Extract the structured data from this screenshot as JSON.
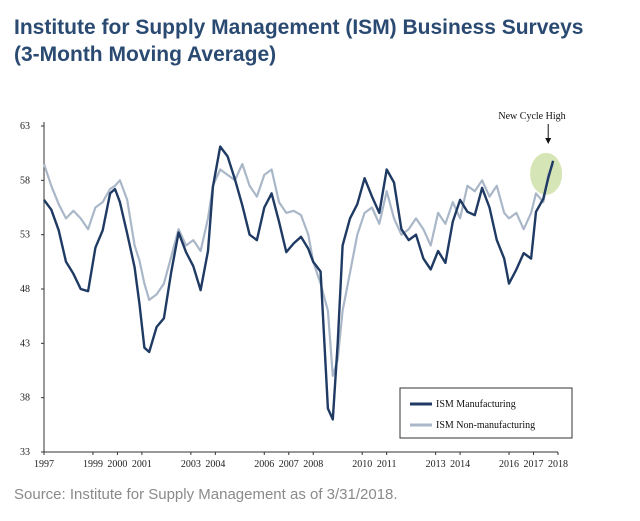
{
  "title_line1": "Institute for Supply Management (ISM) Business Surveys",
  "title_line2": "(3-Month Moving Average)",
  "source": "Source: Institute for Supply Management as of 3/31/2018.",
  "colors": {
    "manufacturing": "#1f3a63",
    "non_manufacturing": "#a9b7c8",
    "highlight": "#cfe0a8",
    "title": "#2a4a72"
  },
  "chart_data": {
    "type": "line",
    "title": "",
    "xlabel": "",
    "ylabel": "",
    "ylim": [
      33,
      63
    ],
    "xlim": [
      1997,
      2018
    ],
    "yticks": [
      33,
      38,
      43,
      48,
      53,
      58,
      63
    ],
    "xticks": [
      1997,
      1999,
      2000,
      2001,
      2003,
      2004,
      2006,
      2007,
      2008,
      2010,
      2011,
      2013,
      2014,
      2016,
      2017,
      2018
    ],
    "grid": false,
    "legend": "bottom-right",
    "annotation": {
      "text": "New Cycle High",
      "x": 2017.6,
      "y": 59.8
    },
    "series": [
      {
        "name": "ISM Manufacturing",
        "x": [
          1997.0,
          1997.3,
          1997.6,
          1997.9,
          1998.2,
          1998.5,
          1998.8,
          1999.1,
          1999.4,
          1999.7,
          1999.9,
          2000.1,
          2000.4,
          2000.7,
          2000.9,
          2001.1,
          2001.3,
          2001.6,
          2001.9,
          2002.2,
          2002.5,
          2002.8,
          2003.1,
          2003.4,
          2003.7,
          2003.9,
          2004.2,
          2004.5,
          2004.8,
          2005.1,
          2005.4,
          2005.7,
          2006.0,
          2006.3,
          2006.6,
          2006.9,
          2007.2,
          2007.5,
          2007.8,
          2008.0,
          2008.3,
          2008.6,
          2008.8,
          2009.0,
          2009.2,
          2009.5,
          2009.8,
          2010.1,
          2010.4,
          2010.7,
          2011.0,
          2011.3,
          2011.6,
          2011.9,
          2012.2,
          2012.5,
          2012.8,
          2013.1,
          2013.4,
          2013.7,
          2014.0,
          2014.3,
          2014.6,
          2014.9,
          2015.2,
          2015.5,
          2015.8,
          2016.0,
          2016.3,
          2016.6,
          2016.9,
          2017.1,
          2017.4,
          2017.6,
          2017.8
        ],
        "values": [
          56.2,
          55.3,
          53.4,
          50.5,
          49.4,
          48.0,
          47.8,
          51.8,
          53.4,
          56.8,
          57.2,
          56.0,
          53.1,
          50.0,
          46.6,
          42.6,
          42.2,
          44.5,
          45.3,
          49.6,
          53.2,
          51.4,
          50.1,
          47.9,
          51.5,
          57.4,
          61.1,
          60.2,
          58.1,
          55.7,
          53.0,
          52.5,
          55.5,
          56.8,
          54.2,
          51.4,
          52.2,
          52.8,
          51.7,
          50.5,
          49.6,
          37.0,
          36.0,
          43.0,
          52.0,
          54.5,
          55.8,
          58.2,
          56.5,
          55.0,
          59.0,
          57.8,
          53.5,
          52.5,
          53.0,
          50.8,
          49.8,
          51.5,
          50.4,
          54.2,
          56.2,
          55.1,
          54.8,
          57.3,
          55.5,
          52.5,
          50.8,
          48.5,
          49.8,
          51.3,
          50.8,
          55.1,
          56.3,
          58.2,
          59.8
        ]
      },
      {
        "name": "ISM Non-manufacturing",
        "x": [
          1997.0,
          1997.3,
          1997.6,
          1997.9,
          1998.2,
          1998.5,
          1998.8,
          1999.1,
          1999.4,
          1999.7,
          1999.9,
          2000.1,
          2000.4,
          2000.7,
          2000.9,
          2001.1,
          2001.3,
          2001.6,
          2001.9,
          2002.2,
          2002.5,
          2002.8,
          2003.1,
          2003.4,
          2003.7,
          2003.9,
          2004.2,
          2004.5,
          2004.8,
          2005.1,
          2005.4,
          2005.7,
          2006.0,
          2006.3,
          2006.6,
          2006.9,
          2007.2,
          2007.5,
          2007.8,
          2008.0,
          2008.3,
          2008.6,
          2008.8,
          2009.0,
          2009.2,
          2009.5,
          2009.8,
          2010.1,
          2010.4,
          2010.7,
          2011.0,
          2011.3,
          2011.6,
          2011.9,
          2012.2,
          2012.5,
          2012.8,
          2013.1,
          2013.4,
          2013.7,
          2014.0,
          2014.3,
          2014.6,
          2014.9,
          2015.2,
          2015.5,
          2015.8,
          2016.0,
          2016.3,
          2016.6,
          2016.9,
          2017.1,
          2017.4,
          2017.6,
          2017.8
        ],
        "values": [
          59.5,
          57.5,
          55.8,
          54.5,
          55.2,
          54.5,
          53.5,
          55.5,
          56.0,
          57.2,
          57.5,
          58.0,
          56.2,
          52.0,
          50.6,
          48.5,
          47.0,
          47.5,
          48.5,
          51.0,
          53.5,
          52.0,
          52.5,
          51.5,
          54.5,
          57.5,
          59.0,
          58.5,
          58.0,
          59.5,
          57.5,
          56.5,
          58.5,
          59.0,
          56.0,
          55.0,
          55.2,
          54.8,
          53.0,
          50.5,
          48.5,
          46.0,
          40.0,
          41.5,
          46.0,
          49.5,
          53.0,
          55.0,
          55.5,
          54.0,
          57.0,
          54.5,
          53.0,
          53.5,
          54.5,
          53.5,
          52.0,
          55.0,
          54.0,
          56.0,
          54.5,
          57.5,
          57.0,
          58.0,
          56.5,
          57.5,
          55.0,
          54.5,
          55.0,
          53.5,
          55.0,
          56.8,
          56.0,
          58.5,
          59.5
        ]
      }
    ]
  }
}
